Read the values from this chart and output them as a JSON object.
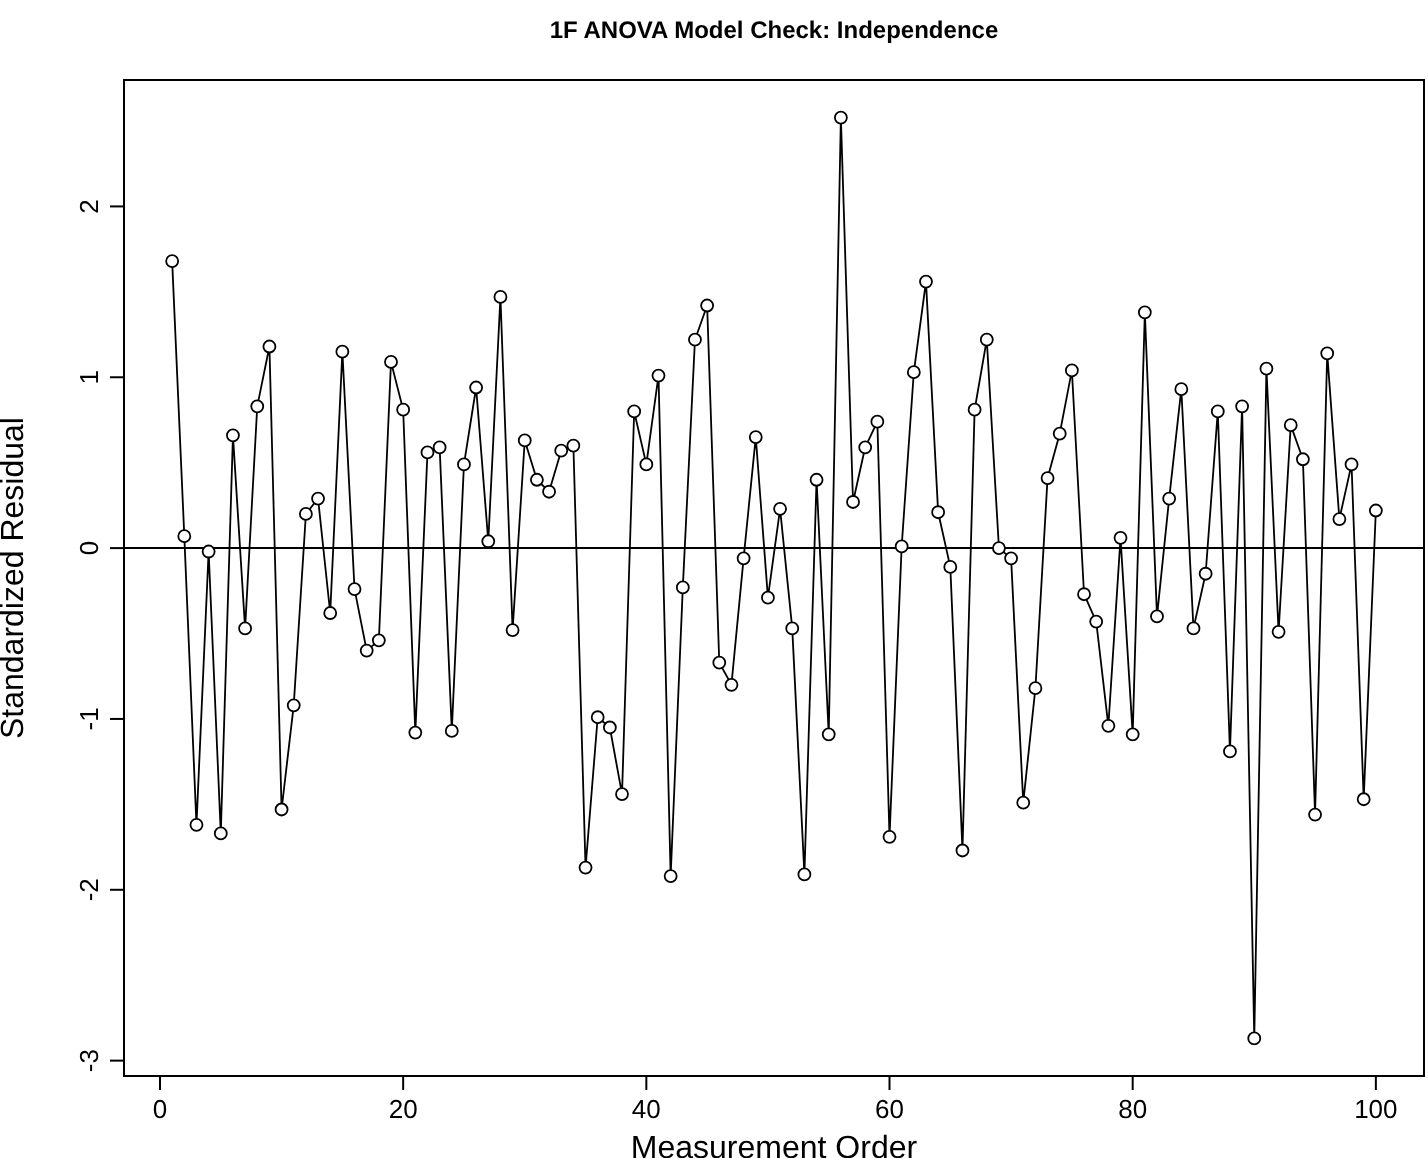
{
  "chart_data": {
    "type": "line",
    "title": "1F ANOVA Model Check: Independence",
    "xlabel": "Measurement Order",
    "ylabel": "Standardized Residual",
    "x": [
      1,
      2,
      3,
      4,
      5,
      6,
      7,
      8,
      9,
      10,
      11,
      12,
      13,
      14,
      15,
      16,
      17,
      18,
      19,
      20,
      21,
      22,
      23,
      24,
      25,
      26,
      27,
      28,
      29,
      30,
      31,
      32,
      33,
      34,
      35,
      36,
      37,
      38,
      39,
      40,
      41,
      42,
      43,
      44,
      45,
      46,
      47,
      48,
      49,
      50,
      51,
      52,
      53,
      54,
      55,
      56,
      57,
      58,
      59,
      60,
      61,
      62,
      63,
      64,
      65,
      66,
      67,
      68,
      69,
      70,
      71,
      72,
      73,
      74,
      75,
      76,
      77,
      78,
      79,
      80,
      81,
      82,
      83,
      84,
      85,
      86,
      87,
      88,
      89,
      90,
      91,
      92,
      93,
      94,
      95,
      96,
      97,
      98,
      99,
      100
    ],
    "series": [
      {
        "color": "#000000",
        "values": [
          1.68,
          0.07,
          -1.62,
          -0.02,
          -1.67,
          0.66,
          -0.47,
          0.83,
          1.18,
          -1.53,
          -0.92,
          0.2,
          0.29,
          -0.38,
          1.15,
          -0.24,
          -0.6,
          -0.54,
          1.09,
          0.81,
          -1.08,
          0.56,
          0.59,
          -1.07,
          0.49,
          0.94,
          0.04,
          1.47,
          -0.48,
          0.63,
          0.4,
          0.33,
          0.57,
          0.6,
          -1.87,
          -0.99,
          -1.05,
          -1.44,
          0.8,
          0.49,
          1.01,
          -1.92,
          -0.23,
          1.22,
          1.42,
          -0.67,
          -0.8,
          -0.06,
          0.65,
          -0.29,
          0.23,
          -0.47,
          -1.91,
          0.4,
          -1.09,
          2.52,
          0.27,
          0.59,
          0.74,
          -1.69,
          0.01,
          1.03,
          1.56,
          0.21,
          -0.11,
          -1.77,
          0.81,
          1.22,
          0,
          -0.06,
          -1.49,
          -0.82,
          0.41,
          0.67,
          1.04,
          -0.27,
          -0.43,
          -1.04,
          0.06,
          -1.09,
          1.38,
          -0.4,
          0.29,
          0.93,
          -0.47,
          -0.15,
          0.8,
          -1.19,
          0.83,
          -2.87,
          1.05,
          -0.49,
          0.72,
          0.52,
          -1.56,
          1.14,
          0.17,
          0.49,
          -1.47,
          0.22
        ]
      }
    ],
    "xlim": [
      -2.96,
      103.96
    ],
    "xticks": [
      0,
      20,
      40,
      60,
      80,
      100
    ],
    "ylim": [
      -3.09,
      2.74
    ],
    "yticks": [
      -3,
      -2,
      -1,
      0,
      1,
      2
    ],
    "ref_lines": [
      {
        "axis": "y",
        "value": 0,
        "color": "#000000"
      }
    ],
    "grid": false,
    "legend": false,
    "marker": "circle",
    "line_style": "solid"
  }
}
